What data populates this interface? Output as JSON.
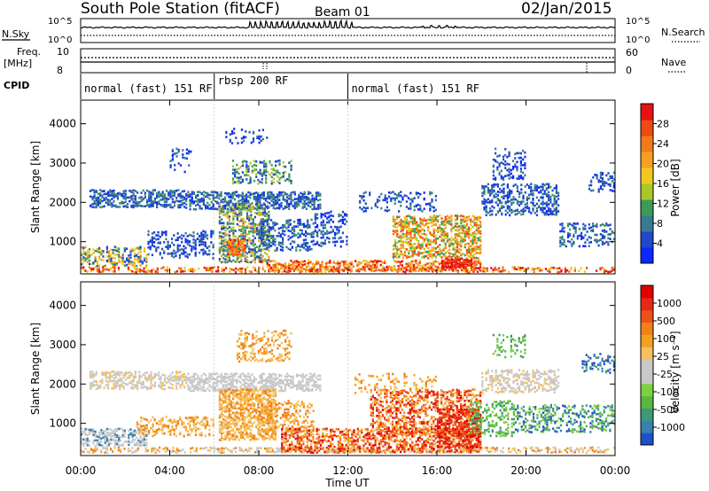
{
  "header": {
    "station": "South Pole Station (fitACF)",
    "beam": "Beam 01",
    "date": "02/Jan/2015"
  },
  "top_panels": {
    "nsky_label": "N.Sky",
    "nsky_ticks": [
      "10^5",
      "10^0"
    ],
    "nsearch_label": "N.Search",
    "nsearch_ticks": [
      "10^5",
      "10^0"
    ],
    "freq_label_1": "Freq.",
    "freq_label_2": "[MHz]",
    "freq_ticks": [
      "10",
      "8"
    ],
    "nave_label": "Nave",
    "nave_ticks": [
      "60",
      "0"
    ],
    "cpid_label": "CPID",
    "cpid_segments": [
      {
        "label": "normal (fast) 151 RF",
        "start_h": 0,
        "end_h": 6.0
      },
      {
        "label": "rbsp 200 RF",
        "start_h": 6.0,
        "end_h": 12.0
      },
      {
        "label": "normal (fast) 151 RF",
        "start_h": 12.0,
        "end_h": 24.0
      }
    ]
  },
  "chart_data": [
    {
      "type": "heatmap",
      "name": "power",
      "ylabel": "Slant Range [km]",
      "yticks": [
        1000,
        2000,
        3000,
        4000
      ],
      "ylim": [
        180,
        4600
      ],
      "xlim": [
        0,
        24
      ],
      "colorbar_label": "Power [dB]",
      "colorbar_ticks": [
        "4",
        "8",
        "12",
        "16",
        "20",
        "24",
        "28"
      ],
      "colorbar_colors": [
        "#0a28ff",
        "#2048c8",
        "#3a7a90",
        "#3c9a5a",
        "#a8c828",
        "#f0c820",
        "#f5a020",
        "#f07a18",
        "#ee4a14",
        "#e81010"
      ]
    },
    {
      "type": "heatmap",
      "name": "velocity",
      "ylabel": "Slant Range [km]",
      "yticks": [
        1000,
        2000,
        3000,
        4000
      ],
      "ylim": [
        180,
        4600
      ],
      "xlim": [
        0,
        24
      ],
      "colorbar_label": "Velocity [m s⁻¹]",
      "colorbar_ticks": [
        "1000",
        "500",
        "100",
        "25",
        "-25",
        "-100",
        "-500",
        "-1000"
      ],
      "colorbar_colors": [
        "#2050c8",
        "#3880b0",
        "#3c9a7a",
        "#5ab840",
        "#7ed040",
        "#c8c8c8",
        "#c8c8c8",
        "#f5c060",
        "#f5a020",
        "#f08018",
        "#ee5018",
        "#e82818",
        "#e00000"
      ]
    }
  ],
  "xaxis": {
    "ticks": [
      "00:00",
      "04:00",
      "08:00",
      "12:00",
      "16:00",
      "20:00",
      "00:00"
    ],
    "label": "Time UT"
  }
}
